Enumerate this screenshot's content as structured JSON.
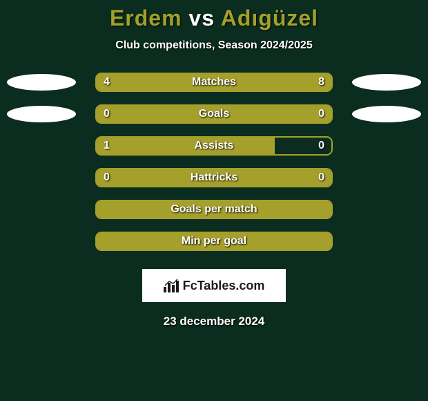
{
  "title_color": "#a5a02b",
  "player_left": "Erdem",
  "vs_text": "vs",
  "player_right": "Adıgüzel",
  "subtitle": "Club competitions, Season 2024/2025",
  "bar_fill_color": "#a5a02b",
  "bar_border_color": "#a5a02b",
  "background_color": "#0a2d1f",
  "ellipse_color": "#ffffff",
  "rows": [
    {
      "label": "Matches",
      "left_val": "4",
      "right_val": "8",
      "left_pct": 33.3,
      "right_pct": 66.7,
      "show_ellipse": true
    },
    {
      "label": "Goals",
      "left_val": "0",
      "right_val": "0",
      "left_pct": 0,
      "right_pct": 100,
      "show_ellipse": true
    },
    {
      "label": "Assists",
      "left_val": "1",
      "right_val": "0",
      "left_pct": 76,
      "right_pct": 0,
      "show_ellipse": false
    },
    {
      "label": "Hattricks",
      "left_val": "0",
      "right_val": "0",
      "left_pct": 0,
      "right_pct": 100,
      "show_ellipse": false
    },
    {
      "label": "Goals per match",
      "left_val": "",
      "right_val": "",
      "left_pct": 100,
      "right_pct": 0,
      "show_ellipse": false
    },
    {
      "label": "Min per goal",
      "left_val": "",
      "right_val": "",
      "left_pct": 0,
      "right_pct": 100,
      "show_ellipse": false
    }
  ],
  "fctables_label": "FcTables.com",
  "date": "23 december 2024"
}
